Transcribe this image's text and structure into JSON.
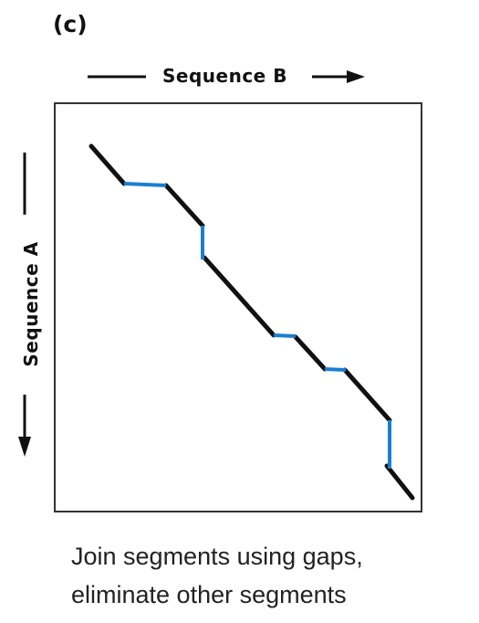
{
  "panel_label": "(c)",
  "x_axis_label": "Sequence B",
  "y_axis_label": "Sequence A",
  "caption": {
    "line1": "Join segments using gaps,",
    "line2": "eliminate other segments"
  },
  "colors": {
    "alignment": "#111111",
    "gap": "#1a7fd1",
    "frame": "#333333"
  }
}
